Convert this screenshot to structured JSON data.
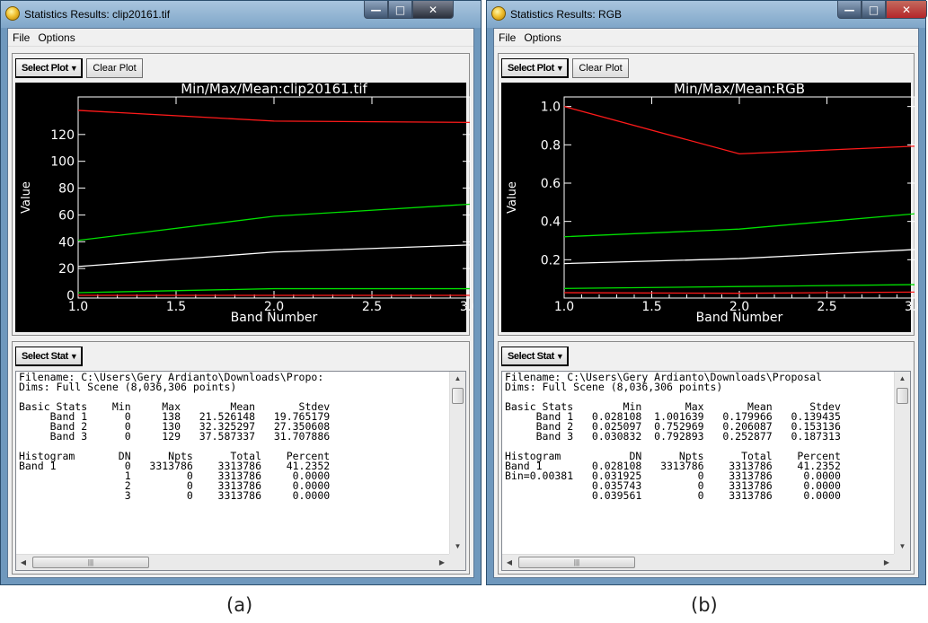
{
  "colors": {
    "plot_bg": "#000000",
    "axis": "#ffffff",
    "red_series": "#ff1a1a",
    "green_series": "#00e000",
    "white_series": "#ffffff"
  },
  "icons": [
    "app-icon",
    "minimize-icon",
    "maximize-icon",
    "close-icon",
    "dropdown-caret-icon",
    "scroll-up-icon",
    "scroll-down-icon",
    "scroll-left-icon",
    "scroll-right-icon"
  ],
  "windows": [
    {
      "id": "a",
      "title": "Statistics Results: clip20161.tif",
      "menu": [
        "File",
        "Options"
      ],
      "select_plot_label": "Select Plot",
      "clear_plot_label": "Clear Plot",
      "select_stat_label": "Select Stat",
      "caption": "(a)",
      "text_lines": [
        "Filename: C:\\Users\\Gery Ardianto\\Downloads\\Propo:",
        "Dims: Full Scene (8,036,306 points)",
        "",
        "Basic Stats    Min     Max        Mean       Stdev",
        "     Band 1      0     138   21.526148   19.765179",
        "     Band 2      0     130   32.325297   27.350608",
        "     Band 3      0     129   37.587337   31.707886",
        "",
        "Histogram       DN      Npts      Total    Percent",
        "Band 1           0   3313786    3313786    41.2352",
        "                 1         0    3313786     0.0000",
        "                 2         0    3313786     0.0000",
        "                 3         0    3313786     0.0000"
      ]
    },
    {
      "id": "b",
      "title": "Statistics Results: RGB",
      "menu": [
        "File",
        "Options"
      ],
      "select_plot_label": "Select Plot",
      "clear_plot_label": "Clear Plot",
      "select_stat_label": "Select Stat",
      "caption": "(b)",
      "text_lines": [
        "Filename: C:\\Users\\Gery Ardianto\\Downloads\\Proposal",
        "Dims: Full Scene (8,036,306 points)",
        "",
        "Basic Stats        Min       Max       Mean      Stdev",
        "     Band 1   0.028108  1.001639   0.179966   0.139435",
        "     Band 2   0.025097  0.752969   0.206087   0.153136",
        "     Band 3   0.030832  0.792893   0.252877   0.187313",
        "",
        "Histogram           DN      Npts      Total    Percent",
        "Band 1        0.028108   3313786    3313786    41.2352",
        "Bin=0.00381   0.031925         0    3313786     0.0000",
        "              0.035743         0    3313786     0.0000",
        "              0.039561         0    3313786     0.0000"
      ]
    }
  ],
  "chart_data": [
    {
      "type": "line",
      "title": "Min/Max/Mean:clip20161.tif",
      "xlabel": "Band Number",
      "ylabel": "Value",
      "x": [
        1.0,
        2.0,
        3.0
      ],
      "xlim": [
        1.0,
        3.0
      ],
      "ylim": [
        -2,
        148
      ],
      "x_ticks": [
        "1.0",
        "1.5",
        "2.0",
        "2.5",
        "3.0"
      ],
      "y_ticks": [
        "0",
        "20",
        "40",
        "60",
        "80",
        "100",
        "120"
      ],
      "grid": false,
      "series": [
        {
          "color": "#ff1a1a",
          "values": [
            138,
            130,
            129
          ]
        },
        {
          "color": "#00e000",
          "values": [
            41,
            59,
            68
          ]
        },
        {
          "color": "#ffffff",
          "values": [
            21.5,
            32.3,
            37.6
          ]
        },
        {
          "color": "#00e000",
          "values": [
            2,
            5,
            5
          ]
        },
        {
          "color": "#ff1a1a",
          "values": [
            0,
            0,
            0
          ]
        }
      ]
    },
    {
      "type": "line",
      "title": "Min/Max/Mean:RGB",
      "xlabel": "Band Number",
      "ylabel": "Value",
      "x": [
        1.0,
        2.0,
        3.0
      ],
      "xlim": [
        1.0,
        3.0
      ],
      "ylim": [
        0,
        1.05
      ],
      "x_ticks": [
        "1.0",
        "1.5",
        "2.0",
        "2.5",
        "3.0"
      ],
      "y_ticks": [
        "0.2",
        "0.4",
        "0.6",
        "0.8",
        "1.0"
      ],
      "grid": false,
      "series": [
        {
          "color": "#ff1a1a",
          "values": [
            1.0,
            0.753,
            0.793
          ]
        },
        {
          "color": "#00e000",
          "values": [
            0.32,
            0.36,
            0.44
          ]
        },
        {
          "color": "#ffffff",
          "values": [
            0.18,
            0.206,
            0.253
          ]
        },
        {
          "color": "#00e000",
          "values": [
            0.05,
            0.06,
            0.07
          ]
        },
        {
          "color": "#ff1a1a",
          "values": [
            0.028,
            0.025,
            0.031
          ]
        }
      ]
    }
  ]
}
